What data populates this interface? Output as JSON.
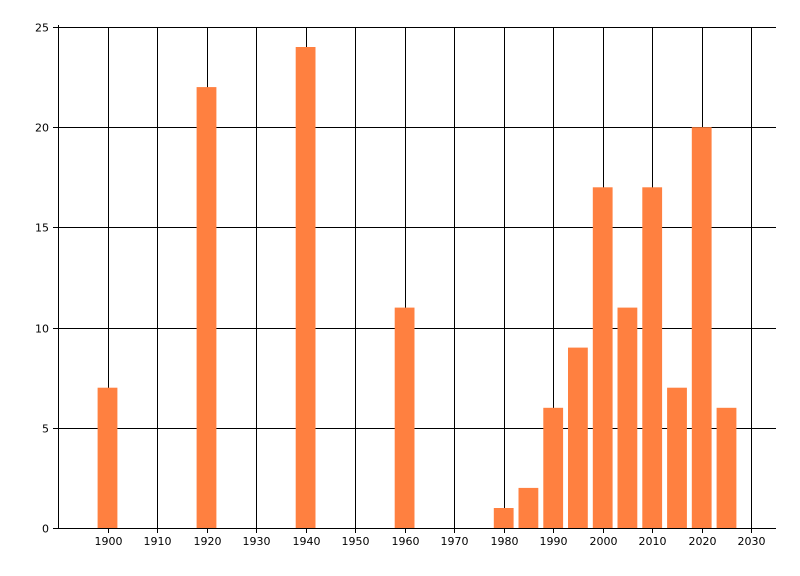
{
  "chart_data": {
    "type": "bar",
    "x": [
      1900,
      1920,
      1940,
      1960,
      1980,
      1985,
      1990,
      1995,
      2000,
      2005,
      2010,
      2015,
      2020,
      2025
    ],
    "values": [
      7,
      22,
      24,
      11,
      1,
      2,
      6,
      9,
      17,
      11,
      17,
      7,
      20,
      6
    ],
    "xlim": [
      1890,
      2035
    ],
    "ylim": [
      0,
      25
    ],
    "x_ticks": [
      1900,
      1910,
      1920,
      1930,
      1940,
      1950,
      1960,
      1970,
      1980,
      1990,
      2000,
      2010,
      2020,
      2030
    ],
    "y_ticks": [
      0,
      5,
      10,
      15,
      20,
      25
    ],
    "grid": true,
    "bar_width_years": 4,
    "title": "",
    "xlabel": "",
    "ylabel": "",
    "colors": {
      "bar": "#FF8040",
      "grid": "#000000",
      "axis": "#000000",
      "background": "#FFFFFF"
    }
  }
}
